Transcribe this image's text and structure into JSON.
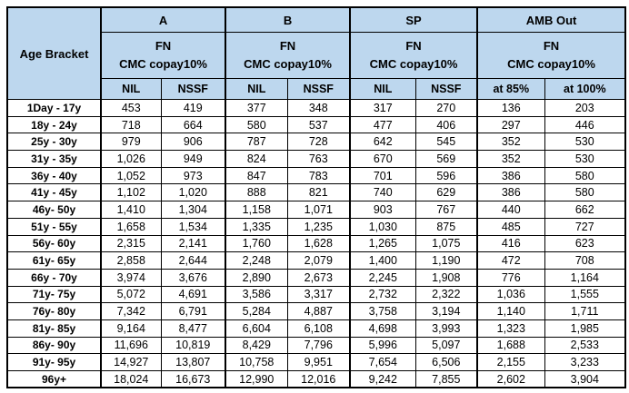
{
  "colors": {
    "header_bg": "#BDD7EE",
    "border": "#000000",
    "text": "#000000",
    "page_bg": "#FFFFFF"
  },
  "table": {
    "corner_label": "Age Bracket",
    "sections": [
      {
        "label": "A",
        "sub_line1": "FN",
        "sub_line2": "CMC copay10%",
        "cols": [
          "NIL",
          "NSSF"
        ]
      },
      {
        "label": "B",
        "sub_line1": "FN",
        "sub_line2": "CMC copay10%",
        "cols": [
          "NIL",
          "NSSF"
        ]
      },
      {
        "label": "SP",
        "sub_line1": "FN",
        "sub_line2": "CMC copay10%",
        "cols": [
          "NIL",
          "NSSF"
        ]
      },
      {
        "label": "AMB Out",
        "sub_line1": "FN",
        "sub_line2": "CMC copay10%",
        "cols": [
          "at 85%",
          "at 100%"
        ]
      }
    ],
    "rows": [
      {
        "age": "1Day - 17y",
        "values": [
          "453",
          "419",
          "377",
          "348",
          "317",
          "270",
          "136",
          "203"
        ]
      },
      {
        "age": "18y  - 24y",
        "values": [
          "718",
          "664",
          "580",
          "537",
          "477",
          "406",
          "297",
          "446"
        ]
      },
      {
        "age": "25y - 30y",
        "values": [
          "979",
          "906",
          "787",
          "728",
          "642",
          "545",
          "352",
          "530"
        ]
      },
      {
        "age": "31y - 35y",
        "values": [
          "1,026",
          "949",
          "824",
          "763",
          "670",
          "569",
          "352",
          "530"
        ]
      },
      {
        "age": "36y - 40y",
        "values": [
          "1,052",
          "973",
          "847",
          "783",
          "701",
          "596",
          "386",
          "580"
        ]
      },
      {
        "age": "41y - 45y",
        "values": [
          "1,102",
          "1,020",
          "888",
          "821",
          "740",
          "629",
          "386",
          "580"
        ]
      },
      {
        "age": "46y- 50y",
        "values": [
          "1,410",
          "1,304",
          "1,158",
          "1,071",
          "903",
          "767",
          "440",
          "662"
        ]
      },
      {
        "age": "51y - 55y",
        "values": [
          "1,658",
          "1,534",
          "1,335",
          "1,235",
          "1,030",
          "875",
          "485",
          "727"
        ]
      },
      {
        "age": "56y- 60y",
        "values": [
          "2,315",
          "2,141",
          "1,760",
          "1,628",
          "1,265",
          "1,075",
          "416",
          "623"
        ]
      },
      {
        "age": "61y- 65y",
        "values": [
          "2,858",
          "2,644",
          "2,248",
          "2,079",
          "1,400",
          "1,190",
          "472",
          "708"
        ]
      },
      {
        "age": "66y - 70y",
        "values": [
          "3,974",
          "3,676",
          "2,890",
          "2,673",
          "2,245",
          "1,908",
          "776",
          "1,164"
        ]
      },
      {
        "age": "71y- 75y",
        "values": [
          "5,072",
          "4,691",
          "3,586",
          "3,317",
          "2,732",
          "2,322",
          "1,036",
          "1,555"
        ]
      },
      {
        "age": "76y- 80y",
        "values": [
          "7,342",
          "6,791",
          "5,284",
          "4,887",
          "3,758",
          "3,194",
          "1,140",
          "1,711"
        ]
      },
      {
        "age": "81y- 85y",
        "values": [
          "9,164",
          "8,477",
          "6,604",
          "6,108",
          "4,698",
          "3,993",
          "1,323",
          "1,985"
        ]
      },
      {
        "age": "86y- 90y",
        "values": [
          "11,696",
          "10,819",
          "8,429",
          "7,796",
          "5,996",
          "5,097",
          "1,688",
          "2,533"
        ]
      },
      {
        "age": "91y- 95y",
        "values": [
          "14,927",
          "13,807",
          "10,758",
          "9,951",
          "7,654",
          "6,506",
          "2,155",
          "3,233"
        ]
      },
      {
        "age": "96y+",
        "values": [
          "18,024",
          "16,673",
          "12,990",
          "12,016",
          "9,242",
          "7,855",
          "2,602",
          "3,904"
        ]
      }
    ]
  }
}
